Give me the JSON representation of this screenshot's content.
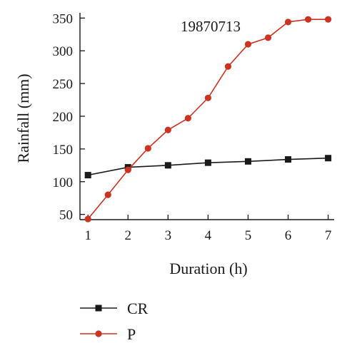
{
  "chart_data": {
    "type": "line",
    "title": "",
    "annotation": "19870713",
    "xlabel": "Duration (h)",
    "ylabel": "Rainfall (mm)",
    "xlim": [
      0.8,
      7.15
    ],
    "ylim": [
      42,
      358
    ],
    "xticks": [
      1,
      2,
      3,
      4,
      5,
      6,
      7
    ],
    "yticks": [
      50,
      100,
      150,
      200,
      250,
      300,
      350
    ],
    "grid": false,
    "legend_position": "bottom-left",
    "series": [
      {
        "name": "CR",
        "color": "#1a1a1a",
        "marker": "square",
        "x": [
          1,
          2,
          3,
          4,
          5,
          6,
          7
        ],
        "y": [
          110,
          122,
          125,
          129,
          131,
          134,
          136
        ]
      },
      {
        "name": "P",
        "color": "#cc3322",
        "marker": "circle",
        "x": [
          1,
          1.5,
          2,
          2.5,
          3,
          3.5,
          4,
          4.5,
          5,
          5.5,
          6,
          6.5,
          7
        ],
        "y": [
          43,
          80,
          118,
          151,
          179,
          197,
          228,
          276,
          310,
          320,
          344,
          348,
          348
        ]
      }
    ]
  }
}
